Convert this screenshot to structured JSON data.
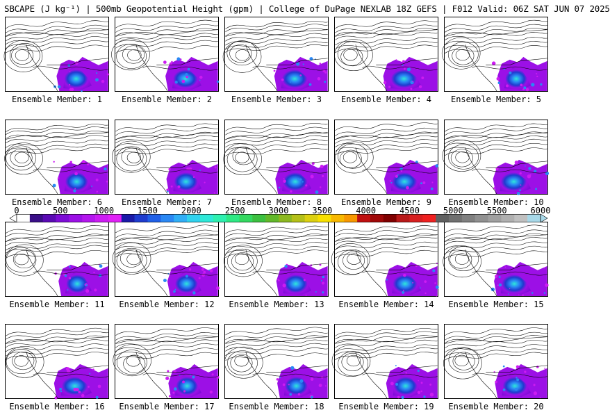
{
  "title": "SBCAPE (J kg⁻¹) | 500mb Geopotential Height (gpm) | College of DuPage NEXLAB 18Z GEFS | F012 Valid: 06Z SAT JUN 07 2025",
  "panels": [
    {
      "member": 1,
      "caption": "Ensemble Member: 1"
    },
    {
      "member": 2,
      "caption": "Ensemble Member: 2"
    },
    {
      "member": 3,
      "caption": "Ensemble Member: 3"
    },
    {
      "member": 4,
      "caption": "Ensemble Member: 4"
    },
    {
      "member": 5,
      "caption": "Ensemble Member: 5"
    },
    {
      "member": 6,
      "caption": "Ensemble Member: 6"
    },
    {
      "member": 7,
      "caption": "Ensemble Member: 7"
    },
    {
      "member": 8,
      "caption": "Ensemble Member: 8"
    },
    {
      "member": 9,
      "caption": "Ensemble Member: 9"
    },
    {
      "member": 10,
      "caption": "Ensemble Member: 10"
    },
    {
      "member": 11,
      "caption": "Ensemble Member: 11"
    },
    {
      "member": 12,
      "caption": "Ensemble Member: 12"
    },
    {
      "member": 13,
      "caption": "Ensemble Member: 13"
    },
    {
      "member": 14,
      "caption": "Ensemble Member: 14"
    },
    {
      "member": 15,
      "caption": "Ensemble Member: 15"
    },
    {
      "member": 16,
      "caption": "Ensemble Member: 16"
    },
    {
      "member": 17,
      "caption": "Ensemble Member: 17"
    },
    {
      "member": 18,
      "caption": "Ensemble Member: 18"
    },
    {
      "member": 19,
      "caption": "Ensemble Member: 19"
    },
    {
      "member": 20,
      "caption": "Ensemble Member: 20"
    }
  ],
  "colorbar": {
    "min": 0,
    "max": 6000,
    "ticks": [
      "0",
      "500",
      "1000",
      "1500",
      "2000",
      "2500",
      "3000",
      "3500",
      "4000",
      "4500",
      "5000",
      "5500",
      "6000"
    ],
    "colors": [
      "#ffffff",
      "#3a0f88",
      "#5a0ab4",
      "#7d0cd6",
      "#9c10e6",
      "#b416ee",
      "#cc1cf2",
      "#e020f6",
      "#1a1aa8",
      "#1e3ccf",
      "#2060e8",
      "#2a88f4",
      "#30aef6",
      "#30d2ee",
      "#2ee8d8",
      "#2ef0b0",
      "#2ee884",
      "#34d860",
      "#3cc040",
      "#62b82a",
      "#8cb820",
      "#b4c018",
      "#dcd010",
      "#f8e000",
      "#f8b800",
      "#f89800",
      "#c01010",
      "#a00808",
      "#800000",
      "#b81818",
      "#d82020",
      "#f02020",
      "#606060",
      "#707070",
      "#808080",
      "#909090",
      "#a0a0a0",
      "#b0b0b0",
      "#c0c0c0",
      "#a8d8e8"
    ],
    "extend": "both"
  },
  "legend_meaning": "filled SBCAPE, black contours = 500mb heights"
}
